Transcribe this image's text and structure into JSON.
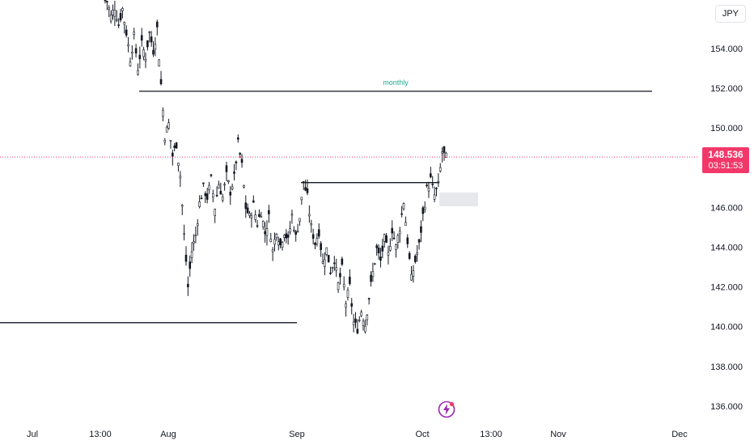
{
  "currency_badge": "JPY",
  "price_tag": {
    "price": "148.536",
    "countdown": "03:51:53"
  },
  "colors": {
    "candle": "#131722",
    "current_price_line": "#f23869",
    "monthly_label": "#22ab94",
    "zone": "#e6e8ec",
    "bolt": "#9c27b0"
  },
  "chart_data": {
    "type": "line",
    "y_axis_ticks": [
      "154.000",
      "152.000",
      "150.000",
      "148.000",
      "146.000",
      "144.000",
      "142.000",
      "140.000",
      "138.000",
      "136.000"
    ],
    "x_axis_ticks": [
      "Jul",
      "13:00",
      "Aug",
      "Sep",
      "Oct",
      "13:00",
      "Nov",
      "Dec"
    ],
    "ylim": [
      135.0,
      156.5
    ],
    "current_price": 148.536,
    "levels": [
      {
        "label": "monthly",
        "value": 151.85
      },
      {
        "label": "",
        "value": 140.2
      },
      {
        "label": "",
        "value": 147.25
      }
    ],
    "series": [
      {
        "values": [
          156.4,
          155.6,
          156.1,
          155.2,
          156.0,
          154.8,
          153.5,
          154.6,
          153.0,
          154.2,
          153.6,
          154.8,
          153.9,
          155.0,
          152.2,
          149.6,
          150.2,
          148.6,
          149.2,
          147.6,
          144.6,
          142.0,
          143.8,
          144.6,
          146.2,
          147.0,
          146.5,
          147.4,
          146.0,
          147.2,
          146.5,
          147.6,
          146.8,
          147.5,
          149.2,
          148.1,
          146.0,
          145.5,
          146.1,
          145.2,
          145.8,
          144.7,
          145.5,
          143.8,
          144.9,
          144.1,
          144.8,
          144.3,
          145.6,
          144.5,
          145.5,
          147.3,
          146.5,
          145.0,
          144.2,
          144.8,
          143.2,
          143.9,
          142.8,
          143.4,
          142.1,
          142.9,
          141.2,
          142.0,
          140.2,
          139.9,
          140.8,
          140.1,
          141.5,
          142.7,
          143.9,
          143.3,
          144.4,
          143.6,
          144.9,
          144.0,
          145.0,
          146.3,
          144.3,
          142.4,
          143.3,
          144.1,
          145.6,
          146.9,
          147.4,
          146.6,
          147.1,
          148.8,
          148.5
        ]
      }
    ]
  }
}
